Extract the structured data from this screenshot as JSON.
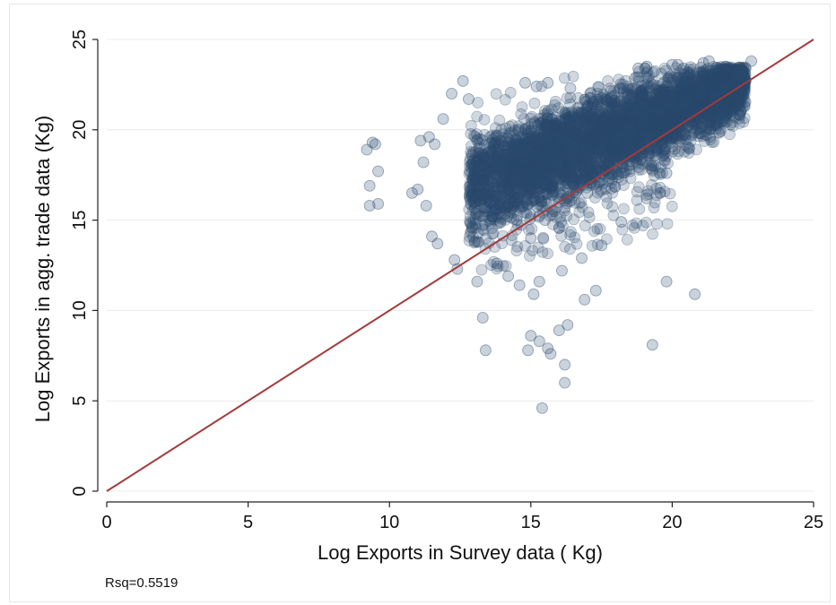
{
  "chart_data": {
    "type": "scatter",
    "xlabel": "Log  Exports in Survey data ( Kg)",
    "ylabel": "Log Exports in agg. trade data (Kg)",
    "xlim": [
      0,
      25
    ],
    "ylim": [
      0,
      25
    ],
    "xticks": [
      0,
      5,
      10,
      15,
      20,
      25
    ],
    "yticks": [
      0,
      5,
      10,
      15,
      20,
      25
    ],
    "grid": "horizontal",
    "marker_color": "#2a4a6e",
    "line_color": "#a33a3a",
    "reference_line": {
      "x": [
        0,
        25
      ],
      "y": [
        0,
        25
      ]
    },
    "note": "Rsq=0.5519",
    "series": [
      {
        "points": [
          [
            9.2,
            18.9
          ],
          [
            9.4,
            19.3
          ],
          [
            9.5,
            19.2
          ],
          [
            9.3,
            16.9
          ],
          [
            9.3,
            15.8
          ],
          [
            9.6,
            17.7
          ],
          [
            9.6,
            15.9
          ],
          [
            10.8,
            16.5
          ],
          [
            11.0,
            16.7
          ],
          [
            11.3,
            15.8
          ],
          [
            11.1,
            19.4
          ],
          [
            11.4,
            19.6
          ],
          [
            11.6,
            19.2
          ],
          [
            11.2,
            18.2
          ],
          [
            11.9,
            20.6
          ],
          [
            12.2,
            22.0
          ],
          [
            12.6,
            22.7
          ],
          [
            12.8,
            21.7
          ],
          [
            11.5,
            14.1
          ],
          [
            11.7,
            13.7
          ],
          [
            12.3,
            12.8
          ],
          [
            12.4,
            12.3
          ],
          [
            13.1,
            11.6
          ],
          [
            13.3,
            9.6
          ],
          [
            13.4,
            7.8
          ],
          [
            14.9,
            7.8
          ],
          [
            15.0,
            8.6
          ],
          [
            15.3,
            8.3
          ],
          [
            15.6,
            7.9
          ],
          [
            15.7,
            7.6
          ],
          [
            15.4,
            4.6
          ],
          [
            16.2,
            6.0
          ],
          [
            16.2,
            7.0
          ],
          [
            16.0,
            8.9
          ],
          [
            16.3,
            9.2
          ],
          [
            16.9,
            10.6
          ],
          [
            17.3,
            11.1
          ],
          [
            19.3,
            8.1
          ],
          [
            19.8,
            11.6
          ],
          [
            20.8,
            10.9
          ],
          [
            14.8,
            22.6
          ],
          [
            15.2,
            22.4
          ],
          [
            15.6,
            22.6
          ],
          [
            16.4,
            22.3
          ],
          [
            17.1,
            22.0
          ],
          [
            18.8,
            23.4
          ],
          [
            19.1,
            23.5
          ],
          [
            20.0,
            23.6
          ],
          [
            20.2,
            23.6
          ],
          [
            20.4,
            23.4
          ],
          [
            21.1,
            23.7
          ],
          [
            21.3,
            23.8
          ],
          [
            21.9,
            23.5
          ],
          [
            22.3,
            23.3
          ],
          [
            22.6,
            23.4
          ],
          [
            22.8,
            23.8
          ],
          [
            22.5,
            23.0
          ],
          [
            22.2,
            22.6
          ],
          [
            21.8,
            22.3
          ],
          [
            21.5,
            21.9
          ],
          [
            13.0,
            16.0
          ],
          [
            13.5,
            17.0
          ],
          [
            14.0,
            18.0
          ],
          [
            14.5,
            19.0
          ],
          [
            14.5,
            15.0
          ],
          [
            15.0,
            16.0
          ],
          [
            15.0,
            14.0
          ],
          [
            15.5,
            15.0
          ],
          [
            15.5,
            17.0
          ],
          [
            16.0,
            16.0
          ],
          [
            16.0,
            18.0
          ],
          [
            16.5,
            17.0
          ],
          [
            16.5,
            19.0
          ],
          [
            17.0,
            18.0
          ],
          [
            17.0,
            16.5
          ],
          [
            17.5,
            19.0
          ],
          [
            18.0,
            19.5
          ],
          [
            18.5,
            20.0
          ],
          [
            19.0,
            20.5
          ],
          [
            19.5,
            21.0
          ],
          [
            20.0,
            21.5
          ],
          [
            20.5,
            21.5
          ],
          [
            21.0,
            22.0
          ],
          [
            13.8,
            12.6
          ],
          [
            14.2,
            11.9
          ],
          [
            14.6,
            11.4
          ],
          [
            15.1,
            10.9
          ],
          [
            15.3,
            11.6
          ],
          [
            16.1,
            12.2
          ],
          [
            16.8,
            12.9
          ],
          [
            17.5,
            13.6
          ],
          [
            18.2,
            14.9
          ],
          [
            19.1,
            16.2
          ],
          [
            19.8,
            17.6
          ],
          [
            20.6,
            19.0
          ]
        ]
      }
    ]
  }
}
